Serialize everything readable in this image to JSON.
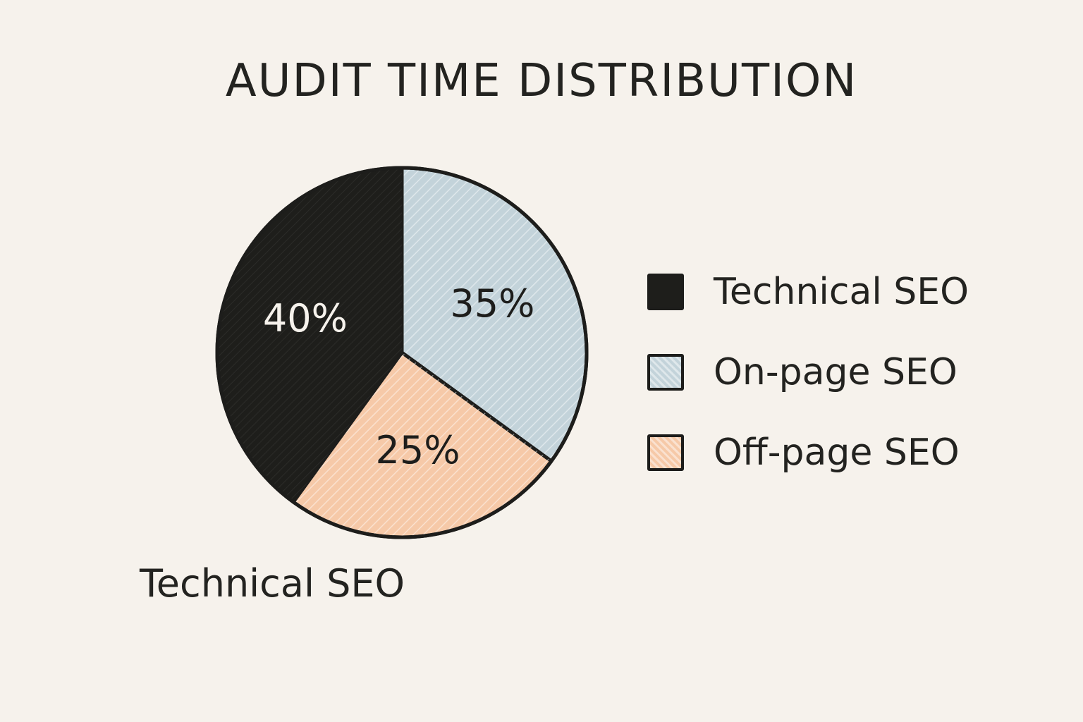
{
  "chart_data": {
    "type": "pie",
    "title": "AUDIT TIME DISTRIBUTION",
    "categories": [
      "Technical SEO",
      "On-page SEO",
      "Off-page SEO"
    ],
    "values": [
      40,
      35,
      25
    ],
    "data_labels": [
      "40%",
      "35%",
      "25%"
    ],
    "colors": [
      "#1e1e1b",
      "#c3d3da",
      "#f6c9a8"
    ],
    "label_colors": [
      "#f6f2ec",
      "#1d1d1b",
      "#1d1d1b"
    ],
    "legend": {
      "placement": "right",
      "entries": [
        "Technical SEO",
        "On-page SEO",
        "Off-page SEO"
      ]
    },
    "annotation": "Technical SEO"
  }
}
